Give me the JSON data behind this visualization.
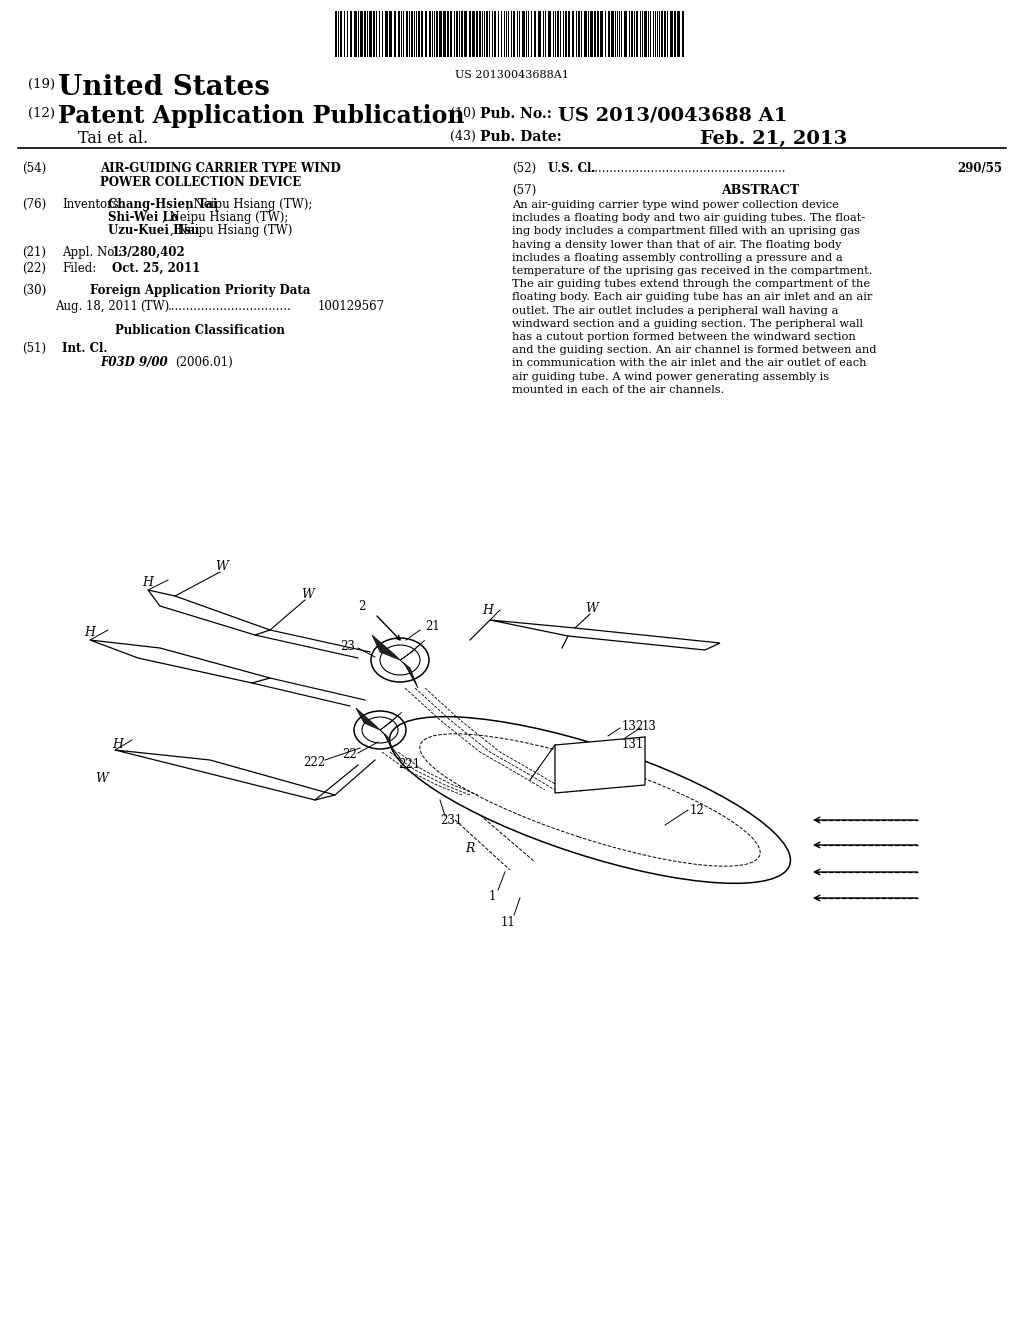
{
  "background_color": "#ffffff",
  "barcode_text": "US 20130043688A1",
  "header": {
    "num19": "(19)",
    "united_states": "United States",
    "num12": "(12)",
    "patent_app_pub": "Patent Application Publication",
    "tai_et_al": "Tai et al.",
    "num10": "(10)",
    "pub_no_label": "Pub. No.:",
    "pub_no": "US 2013/0043688 A1",
    "num43": "(43)",
    "pub_date_label": "Pub. Date:",
    "pub_date": "Feb. 21, 2013"
  },
  "left_col": {
    "num54": "(54)",
    "title_line1": "AIR-GUIDING CARRIER TYPE WIND",
    "title_line2": "POWER COLLECTION DEVICE",
    "num76": "(76)",
    "inventors_label": "Inventors:",
    "inventor1_bold": "Chang-Hsien Tai",
    "inventor1_rest": ", Neipu Hsiang (TW);",
    "inventor2_bold": "Shi-Wei Lo",
    "inventor2_rest": ", Neipu Hsiang (TW);",
    "inventor3_bold": "Uzu-Kuei Hsu",
    "inventor3_rest": ", Neipu Hsiang (TW)",
    "num21": "(21)",
    "appl_label": "Appl. No.:",
    "appl_no": "13/280,402",
    "num22": "(22)",
    "filed_label": "Filed:",
    "filed_date": "Oct. 25, 2011",
    "num30": "(30)",
    "foreign_priority": "Foreign Application Priority Data",
    "priority_line": "Aug. 18, 2011    (TW) .................................. 100129567",
    "pub_class_header": "Publication Classification",
    "num51": "(51)",
    "int_cl_label": "Int. Cl.",
    "int_cl_code": "F03D 9/00",
    "int_cl_year": "(2006.01)"
  },
  "right_col": {
    "num52": "(52)",
    "us_cl_label": "U.S. Cl.",
    "us_cl_dots": "......................................................",
    "us_cl_value": "290/55",
    "num57": "(57)",
    "abstract_title": "ABSTRACT",
    "abstract_lines": [
      "An air-guiding carrier type wind power collection device",
      "includes a floating body and two air guiding tubes. The float-",
      "ing body includes a compartment filled with an uprising gas",
      "having a density lower than that of air. The floating body",
      "includes a floating assembly controlling a pressure and a",
      "temperature of the uprising gas received in the compartment.",
      "The air guiding tubes extend through the compartment of the",
      "floating body. Each air guiding tube has an air inlet and an air",
      "outlet. The air outlet includes a peripheral wall having a",
      "windward section and a guiding section. The peripheral wall",
      "has a cutout portion formed between the windward section",
      "and the guiding section. An air channel is formed between and",
      "in communication with the air inlet and the air outlet of each",
      "air guiding tube. A wind power generating assembly is",
      "mounted in each of the air channels."
    ]
  }
}
